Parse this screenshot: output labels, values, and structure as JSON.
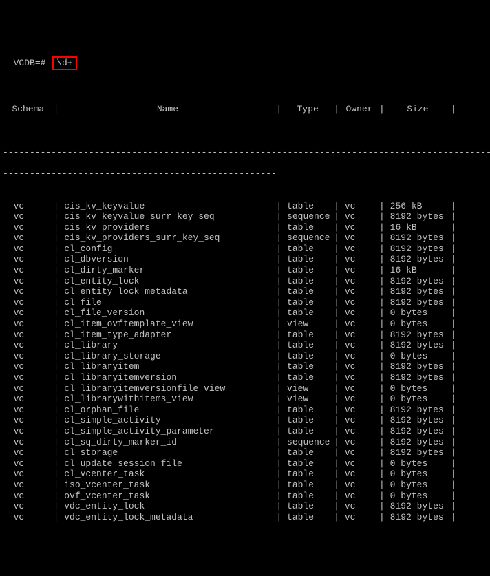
{
  "prompt": "VCDB=#",
  "command": "\\d+",
  "headers": {
    "schema": "Schema",
    "name": "Name",
    "type": "Type",
    "owner": "Owner",
    "size": "Size"
  },
  "separator_top": "----------------------------------------------------------------------------------------------",
  "separator_sub": "---------------------------------------------------",
  "rows": [
    {
      "schema": "vc",
      "name": "cis_kv_keyvalue",
      "type": "table",
      "owner": "vc",
      "size": "256 kB"
    },
    {
      "schema": "vc",
      "name": "cis_kv_keyvalue_surr_key_seq",
      "type": "sequence",
      "owner": "vc",
      "size": "8192 bytes"
    },
    {
      "schema": "vc",
      "name": "cis_kv_providers",
      "type": "table",
      "owner": "vc",
      "size": "16 kB"
    },
    {
      "schema": "vc",
      "name": "cis_kv_providers_surr_key_seq",
      "type": "sequence",
      "owner": "vc",
      "size": "8192 bytes"
    },
    {
      "schema": "vc",
      "name": "cl_config",
      "type": "table",
      "owner": "vc",
      "size": "8192 bytes"
    },
    {
      "schema": "vc",
      "name": "cl_dbversion",
      "type": "table",
      "owner": "vc",
      "size": "8192 bytes"
    },
    {
      "schema": "vc",
      "name": "cl_dirty_marker",
      "type": "table",
      "owner": "vc",
      "size": "16 kB"
    },
    {
      "schema": "vc",
      "name": "cl_entity_lock",
      "type": "table",
      "owner": "vc",
      "size": "8192 bytes"
    },
    {
      "schema": "vc",
      "name": "cl_entity_lock_metadata",
      "type": "table",
      "owner": "vc",
      "size": "8192 bytes"
    },
    {
      "schema": "vc",
      "name": "cl_file",
      "type": "table",
      "owner": "vc",
      "size": "8192 bytes"
    },
    {
      "schema": "vc",
      "name": "cl_file_version",
      "type": "table",
      "owner": "vc",
      "size": "0 bytes"
    },
    {
      "schema": "vc",
      "name": "cl_item_ovftemplate_view",
      "type": "view",
      "owner": "vc",
      "size": "0 bytes"
    },
    {
      "schema": "vc",
      "name": "cl_item_type_adapter",
      "type": "table",
      "owner": "vc",
      "size": "8192 bytes"
    },
    {
      "schema": "vc",
      "name": "cl_library",
      "type": "table",
      "owner": "vc",
      "size": "8192 bytes"
    },
    {
      "schema": "vc",
      "name": "cl_library_storage",
      "type": "table",
      "owner": "vc",
      "size": "0 bytes"
    },
    {
      "schema": "vc",
      "name": "cl_libraryitem",
      "type": "table",
      "owner": "vc",
      "size": "8192 bytes"
    },
    {
      "schema": "vc",
      "name": "cl_libraryitemversion",
      "type": "table",
      "owner": "vc",
      "size": "8192 bytes"
    },
    {
      "schema": "vc",
      "name": "cl_libraryitemversionfile_view",
      "type": "view",
      "owner": "vc",
      "size": "0 bytes"
    },
    {
      "schema": "vc",
      "name": "cl_librarywithitems_view",
      "type": "view",
      "owner": "vc",
      "size": "0 bytes"
    },
    {
      "schema": "vc",
      "name": "cl_orphan_file",
      "type": "table",
      "owner": "vc",
      "size": "8192 bytes"
    },
    {
      "schema": "vc",
      "name": "cl_simple_activity",
      "type": "table",
      "owner": "vc",
      "size": "8192 bytes"
    },
    {
      "schema": "vc",
      "name": "cl_simple_activity_parameter",
      "type": "table",
      "owner": "vc",
      "size": "8192 bytes"
    },
    {
      "schema": "vc",
      "name": "cl_sq_dirty_marker_id",
      "type": "sequence",
      "owner": "vc",
      "size": "8192 bytes"
    },
    {
      "schema": "vc",
      "name": "cl_storage",
      "type": "table",
      "owner": "vc",
      "size": "8192 bytes"
    },
    {
      "schema": "vc",
      "name": "cl_update_session_file",
      "type": "table",
      "owner": "vc",
      "size": "0 bytes"
    },
    {
      "schema": "vc",
      "name": "cl_vcenter_task",
      "type": "table",
      "owner": "vc",
      "size": "0 bytes"
    },
    {
      "schema": "vc",
      "name": "iso_vcenter_task",
      "type": "table",
      "owner": "vc",
      "size": "0 bytes"
    },
    {
      "schema": "vc",
      "name": "ovf_vcenter_task",
      "type": "table",
      "owner": "vc",
      "size": "0 bytes"
    },
    {
      "schema": "vc",
      "name": "vdc_entity_lock",
      "type": "table",
      "owner": "vc",
      "size": "8192 bytes"
    },
    {
      "schema": "vc",
      "name": "vdc_entity_lock_metadata",
      "type": "table",
      "owner": "vc",
      "size": "8192 bytes"
    }
  ]
}
